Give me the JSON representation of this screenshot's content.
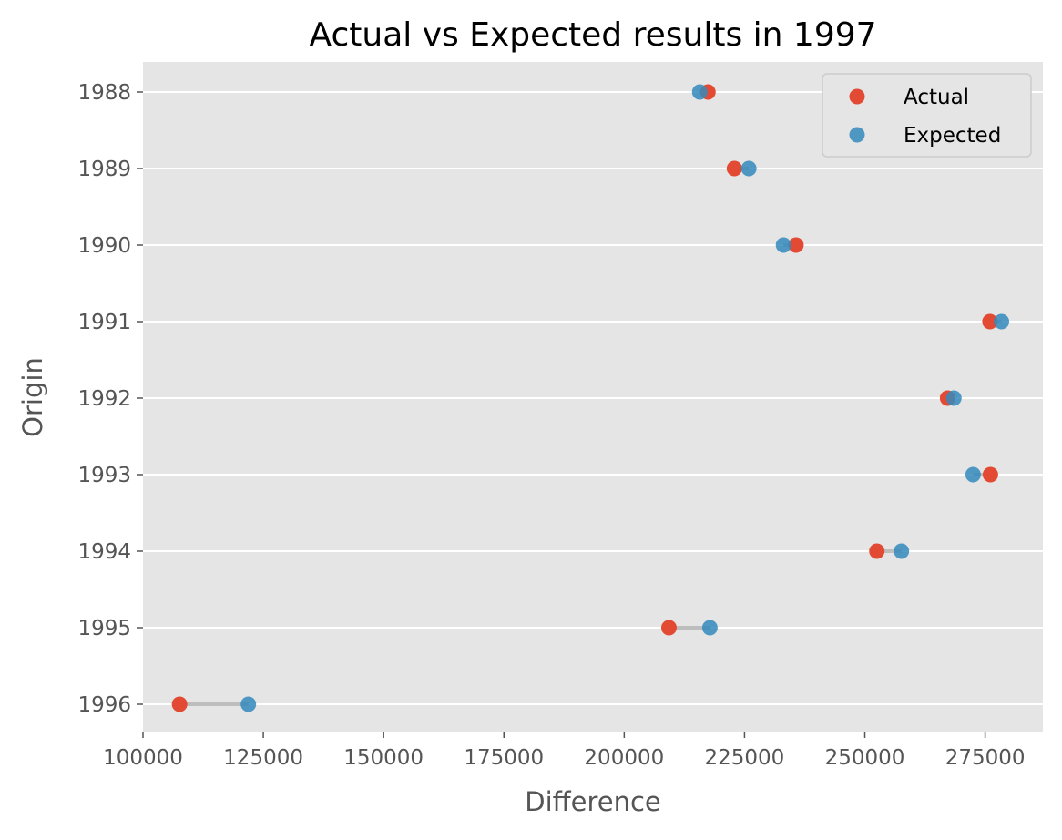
{
  "chart_data": {
    "type": "scatter",
    "title": "Actual vs Expected results in 1997",
    "xlabel": "Difference",
    "ylabel": "Origin",
    "xlim": [
      100000,
      287000
    ],
    "x_ticks": [
      100000,
      125000,
      150000,
      175000,
      200000,
      225000,
      250000,
      275000
    ],
    "x_tick_labels": [
      "100000",
      "125000",
      "150000",
      "175000",
      "200000",
      "225000",
      "250000",
      "275000"
    ],
    "categories": [
      "1988",
      "1989",
      "1990",
      "1991",
      "1992",
      "1993",
      "1994",
      "1995",
      "1996"
    ],
    "grid": true,
    "legend_position": "top-right",
    "series": [
      {
        "name": "Actual",
        "color": "#E24A33",
        "values": [
          217400,
          222900,
          235700,
          276000,
          267200,
          276100,
          252500,
          209300,
          107600
        ]
      },
      {
        "name": "Expected",
        "color": "#348ABD",
        "values": [
          215700,
          225900,
          233100,
          278400,
          268500,
          272500,
          257600,
          217800,
          121900
        ]
      }
    ]
  }
}
